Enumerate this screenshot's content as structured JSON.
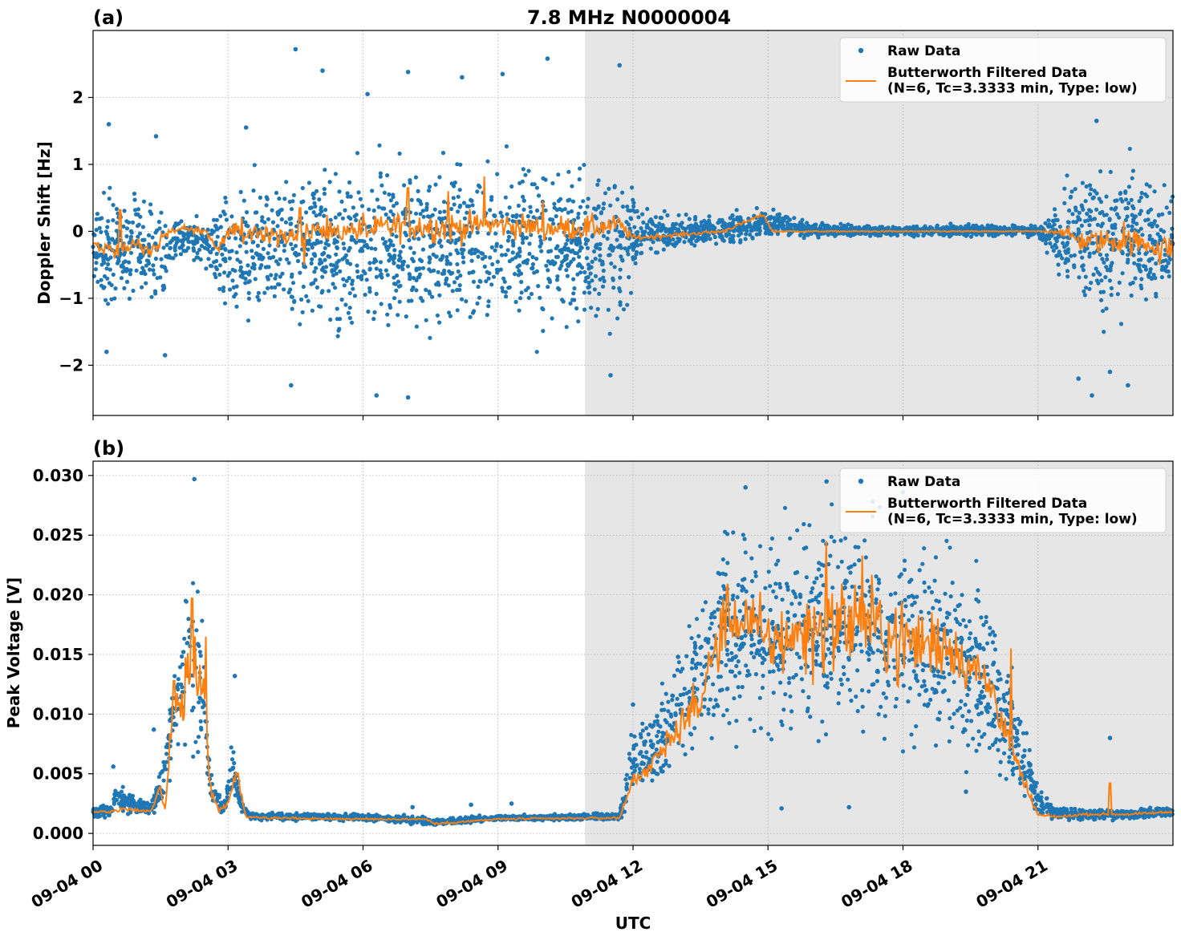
{
  "figure": {
    "title": "7.8 MHz N0000004",
    "xlabel": "UTC",
    "night_shading": {
      "start_hour": 10.93,
      "end_hour": 24.0,
      "color": "#e6e6e6"
    },
    "x_tick_labels": [
      "09-04 00",
      "09-04 03",
      "09-04 06",
      "09-04 09",
      "09-04 12",
      "09-04 15",
      "09-04 18",
      "09-04 21"
    ]
  },
  "chart_data": [
    {
      "type": "scatter",
      "panel_label": "(a)",
      "ylabel": "Doppler Shift [Hz]",
      "xlim": [
        0,
        24
      ],
      "ylim": [
        -2.75,
        3.0
      ],
      "x_ticks": [
        0,
        3,
        6,
        9,
        12,
        15,
        18,
        21
      ],
      "y_ticks": [
        -2,
        -1,
        0,
        1,
        2
      ],
      "y_tick_labels": [
        "−2",
        "−1",
        "0",
        "1",
        "2"
      ],
      "grid": true,
      "legend": "top-right",
      "series": [
        {
          "name": "Raw Data",
          "style": "points",
          "color": "#1f77b4",
          "x_hours": [
            0.0,
            1.0,
            1.5,
            1.7,
            2.0,
            2.5,
            2.7,
            3.0,
            3.3,
            4.0,
            5.0,
            6.0,
            7.0,
            8.0,
            9.0,
            10.0,
            11.0,
            11.8,
            12.2,
            13.0,
            14.0,
            15.0,
            16.0,
            17.0,
            18.0,
            19.0,
            20.0,
            21.0,
            21.7,
            22.0,
            23.0,
            24.0
          ],
          "band_low": [
            -1.35,
            -1.3,
            -1.5,
            -0.6,
            -0.5,
            -0.6,
            -1.0,
            -1.5,
            -1.7,
            -1.7,
            -1.8,
            -1.8,
            -1.8,
            -1.8,
            -1.8,
            -1.8,
            -1.7,
            -1.6,
            -0.45,
            -0.35,
            -0.25,
            -0.15,
            -0.1,
            -0.1,
            -0.1,
            -0.1,
            -0.1,
            -0.1,
            -1.1,
            -1.5,
            -1.5,
            -1.4
          ],
          "band_high": [
            0.8,
            0.85,
            0.8,
            0.25,
            0.2,
            0.3,
            0.5,
            1.0,
            1.2,
            1.25,
            1.3,
            1.35,
            1.4,
            1.4,
            1.4,
            1.4,
            1.3,
            1.2,
            0.4,
            0.3,
            0.3,
            0.45,
            0.15,
            0.12,
            0.12,
            0.12,
            0.12,
            0.12,
            0.9,
            1.3,
            1.3,
            1.1
          ],
          "outliers": [
            [
              4.5,
              2.72
            ],
            [
              5.1,
              2.4
            ],
            [
              6.1,
              2.05
            ],
            [
              7.0,
              2.38
            ],
            [
              8.2,
              2.3
            ],
            [
              9.1,
              2.35
            ],
            [
              10.1,
              2.58
            ],
            [
              11.7,
              2.48
            ],
            [
              4.4,
              -2.3
            ],
            [
              6.3,
              -2.45
            ],
            [
              7.0,
              -2.48
            ],
            [
              11.5,
              -2.15
            ],
            [
              22.2,
              -2.45
            ],
            [
              22.6,
              -2.1
            ],
            [
              23.0,
              -2.3
            ],
            [
              0.35,
              1.6
            ],
            [
              1.4,
              1.42
            ],
            [
              3.4,
              1.55
            ],
            [
              22.3,
              1.65
            ],
            [
              0.3,
              -1.8
            ],
            [
              1.6,
              -1.85
            ],
            [
              21.9,
              -2.2
            ]
          ]
        },
        {
          "name": "Butterworth Filtered Data\n(N=6, Tc=3.3333 min, Type: low)",
          "style": "line",
          "color": "#ff7f0e",
          "x_hours": [
            0.0,
            0.5,
            1.0,
            1.4,
            1.7,
            2.0,
            2.5,
            2.8,
            3.0,
            4.0,
            5.0,
            6.0,
            7.0,
            8.0,
            9.0,
            10.0,
            11.0,
            11.7,
            12.0,
            13.0,
            14.0,
            14.9,
            15.1,
            16.0,
            17.0,
            18.0,
            19.0,
            20.0,
            21.0,
            21.5,
            22.0,
            23.0,
            24.0
          ],
          "y": [
            -0.2,
            -0.25,
            -0.2,
            -0.25,
            0.0,
            0.05,
            0.0,
            -0.3,
            0.0,
            -0.05,
            0.0,
            0.0,
            0.1,
            0.05,
            0.1,
            0.05,
            0.05,
            0.1,
            -0.1,
            -0.05,
            0.0,
            0.25,
            0.0,
            0.0,
            0.0,
            0.0,
            0.0,
            0.0,
            0.0,
            0.0,
            -0.15,
            -0.15,
            -0.25
          ],
          "noise_amp": [
            0.15,
            0.15,
            0.15,
            0.15,
            0.05,
            0.05,
            0.05,
            0.1,
            0.15,
            0.2,
            0.2,
            0.2,
            0.25,
            0.25,
            0.2,
            0.2,
            0.2,
            0.15,
            0.05,
            0.03,
            0.03,
            0.03,
            0.02,
            0.01,
            0.01,
            0.01,
            0.01,
            0.01,
            0.01,
            0.05,
            0.2,
            0.2,
            0.2
          ],
          "spikes": [
            [
              0.6,
              0.32
            ],
            [
              3.3,
              0.2
            ],
            [
              4.6,
              0.35
            ],
            [
              4.7,
              -0.5
            ],
            [
              6.0,
              0.28
            ],
            [
              7.0,
              0.65
            ],
            [
              7.9,
              0.6
            ],
            [
              8.7,
              0.82
            ],
            [
              10.0,
              0.45
            ],
            [
              22.9,
              0.15
            ],
            [
              23.7,
              -0.5
            ]
          ]
        }
      ]
    },
    {
      "type": "scatter",
      "panel_label": "(b)",
      "ylabel": "Peak Voltage [V]",
      "xlim": [
        0,
        24
      ],
      "ylim": [
        -0.001,
        0.0312
      ],
      "x_ticks": [
        0,
        3,
        6,
        9,
        12,
        15,
        18,
        21
      ],
      "y_ticks": [
        0.0,
        0.005,
        0.01,
        0.015,
        0.02,
        0.025,
        0.03
      ],
      "y_tick_labels": [
        "0.000",
        "0.005",
        "0.010",
        "0.015",
        "0.020",
        "0.025",
        "0.030"
      ],
      "grid": true,
      "legend": "top-right",
      "series": [
        {
          "name": "Raw Data",
          "style": "points",
          "color": "#1f77b4",
          "x_hours": [
            0.0,
            0.4,
            0.5,
            1.3,
            1.6,
            1.8,
            2.0,
            2.2,
            2.4,
            2.6,
            2.9,
            3.1,
            3.3,
            3.5,
            4.0,
            6.0,
            7.4,
            7.6,
            9.0,
            11.7,
            12.0,
            12.5,
            13.0,
            13.5,
            14.0,
            14.5,
            15.0,
            16.0,
            17.0,
            18.0,
            19.0,
            20.0,
            20.6,
            21.0,
            21.4,
            22.0,
            23.0,
            24.0
          ],
          "band_low": [
            0.0012,
            0.0012,
            0.0012,
            0.0013,
            0.002,
            0.004,
            0.005,
            0.004,
            0.004,
            0.0025,
            0.0012,
            0.002,
            0.0015,
            0.001,
            0.001,
            0.001,
            0.0006,
            0.0006,
            0.001,
            0.001,
            0.002,
            0.003,
            0.004,
            0.005,
            0.006,
            0.006,
            0.005,
            0.006,
            0.006,
            0.005,
            0.004,
            0.003,
            0.002,
            0.001,
            0.001,
            0.001,
            0.001,
            0.0012
          ],
          "band_high": [
            0.0025,
            0.0025,
            0.0045,
            0.0028,
            0.008,
            0.016,
            0.024,
            0.025,
            0.022,
            0.006,
            0.0025,
            0.009,
            0.003,
            0.0018,
            0.0018,
            0.0017,
            0.0015,
            0.0013,
            0.0016,
            0.0018,
            0.0095,
            0.012,
            0.017,
            0.022,
            0.0285,
            0.0285,
            0.0285,
            0.028,
            0.0285,
            0.028,
            0.027,
            0.022,
            0.012,
            0.0045,
            0.0025,
            0.0022,
            0.0022,
            0.0024
          ],
          "outliers": [
            [
              2.25,
              0.0297
            ],
            [
              0.45,
              0.0056
            ],
            [
              1.35,
              0.0087
            ],
            [
              3.15,
              0.0132
            ],
            [
              7.1,
              0.0022
            ],
            [
              8.4,
              0.0024
            ],
            [
              9.3,
              0.0025
            ],
            [
              12.0,
              0.0108
            ],
            [
              22.6,
              0.008
            ],
            [
              13.0,
              0.0148
            ],
            [
              14.5,
              0.029
            ],
            [
              16.3,
              0.0295
            ],
            [
              18.0,
              0.0286
            ],
            [
              15.3,
              0.0021
            ],
            [
              16.8,
              0.0022
            ],
            [
              19.4,
              0.0035
            ]
          ]
        },
        {
          "name": "Butterworth Filtered Data\n(N=6, Tc=3.3333 min, Type: low)",
          "style": "line",
          "color": "#ff7f0e",
          "x_hours": [
            0.0,
            0.4,
            0.5,
            1.3,
            1.5,
            1.6,
            1.8,
            2.0,
            2.2,
            2.4,
            2.6,
            2.8,
            3.0,
            3.2,
            3.4,
            4.0,
            6.0,
            7.4,
            7.6,
            9.0,
            11.7,
            12.0,
            12.5,
            13.0,
            13.5,
            14.0,
            14.5,
            15.0,
            16.0,
            17.0,
            18.0,
            19.0,
            20.0,
            20.5,
            21.0,
            21.5,
            22.0,
            23.0,
            24.0
          ],
          "y": [
            0.0018,
            0.0018,
            0.002,
            0.0019,
            0.004,
            0.002,
            0.011,
            0.0105,
            0.015,
            0.014,
            0.004,
            0.0018,
            0.0028,
            0.005,
            0.0014,
            0.0013,
            0.0012,
            0.0012,
            0.0008,
            0.0012,
            0.0013,
            0.0045,
            0.006,
            0.009,
            0.011,
            0.018,
            0.018,
            0.016,
            0.017,
            0.018,
            0.016,
            0.016,
            0.012,
            0.006,
            0.0015,
            0.0014,
            0.0016,
            0.0016,
            0.0018
          ],
          "noise_amp": [
            0.0001,
            0.0001,
            0.0002,
            0.0001,
            0.0005,
            0.0005,
            0.003,
            0.004,
            0.004,
            0.003,
            0.001,
            0.0002,
            0.0003,
            0.0008,
            0.0001,
            0.0001,
            0.0001,
            0.0001,
            0.0001,
            0.0001,
            0.0001,
            0.0008,
            0.001,
            0.0015,
            0.002,
            0.003,
            0.003,
            0.003,
            0.004,
            0.004,
            0.004,
            0.003,
            0.002,
            0.001,
            0.0002,
            0.0001,
            0.0001,
            0.0001,
            0.0001
          ],
          "spikes": [
            [
              2.2,
              0.0197
            ],
            [
              1.8,
              0.0128
            ],
            [
              2.5,
              0.0165
            ],
            [
              13.9,
              0.0135
            ],
            [
              16.3,
              0.0245
            ],
            [
              17.1,
              0.0233
            ],
            [
              20.4,
              0.0155
            ],
            [
              22.6,
              0.0042
            ]
          ]
        }
      ]
    }
  ]
}
